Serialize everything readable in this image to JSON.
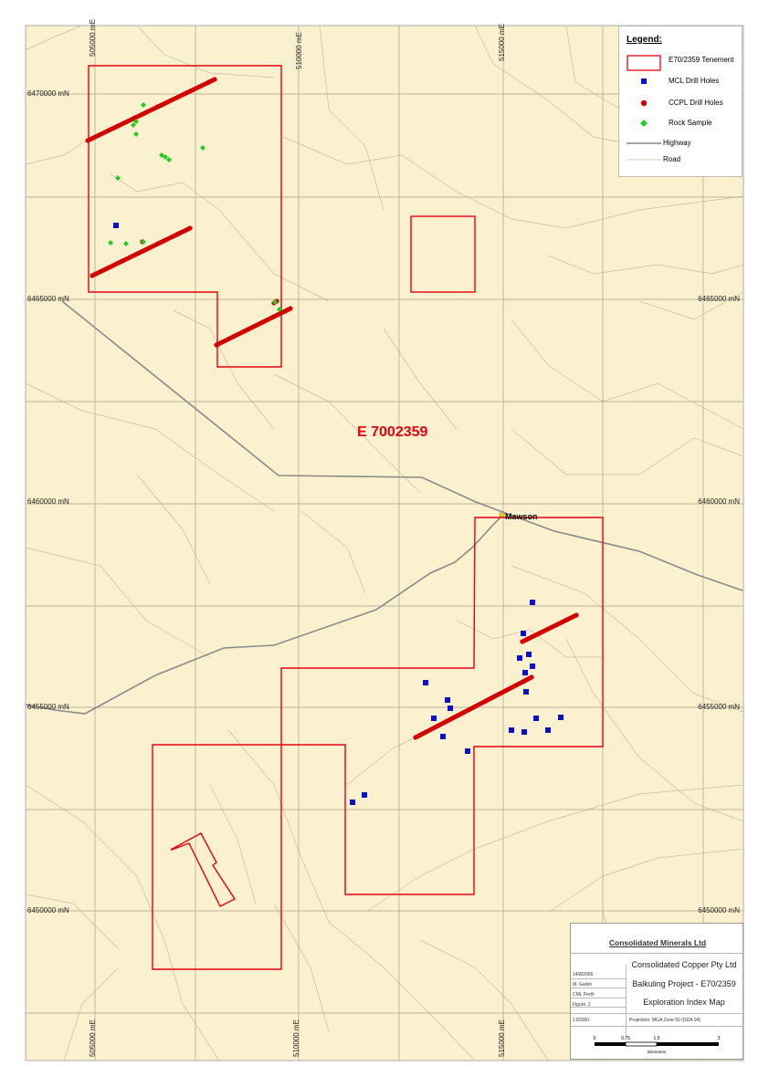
{
  "map": {
    "tenement_label": "E 7002359",
    "town_label": "Mawson",
    "easting_labels": [
      "505000 mE",
      "510000 mE",
      "515000 mE"
    ],
    "northing_labels": [
      "6470000 mN",
      "6465000 mN",
      "6460000 mN",
      "6455000 mN",
      "6450000 mN"
    ],
    "northing_labels_right": [
      "6465000 mN",
      "6460000 mN",
      "6455000 mN",
      "6450000 mN"
    ],
    "colors": {
      "background": "#fbf1cf",
      "tenement": "#e8000f",
      "mcl_drill": "#0a10cc",
      "ccpl_drill": "#d40000",
      "rock_sample": "#22cc22",
      "highway": "#888888",
      "road": "#c9bda3",
      "grid": "#a9a08d"
    }
  },
  "legend": {
    "title": "Legend:",
    "items": [
      {
        "label": "E70/2359 Tenement",
        "icon": "tenement-box-icon"
      },
      {
        "label": "MCL Drill Holes",
        "icon": "blue-square-icon"
      },
      {
        "label": "CCPL Drill Holes",
        "icon": "red-dot-icon"
      },
      {
        "label": "Rock Sample",
        "icon": "green-diamond-icon"
      },
      {
        "label": "Highway",
        "icon": "highway-line-icon"
      },
      {
        "label": "Road",
        "icon": "road-line-icon"
      }
    ]
  },
  "title_block": {
    "company": "Consolidated Minerals Ltd",
    "client": "Consolidated Copper Pty Ltd",
    "project": "Balkuling Project - E70/2359",
    "map_title": "Exploration Index Map",
    "date": "14/8/2006",
    "author": "M. Galvin",
    "office": "CML Perth",
    "figure": "Figure: 2",
    "scale": "1:83360",
    "projection": "Projection: MGA Zone 50 (GDA 94)",
    "scalebar_ticks": [
      "0",
      "0.75",
      "1.5",
      "3"
    ],
    "scalebar_unit": "kilometres"
  }
}
